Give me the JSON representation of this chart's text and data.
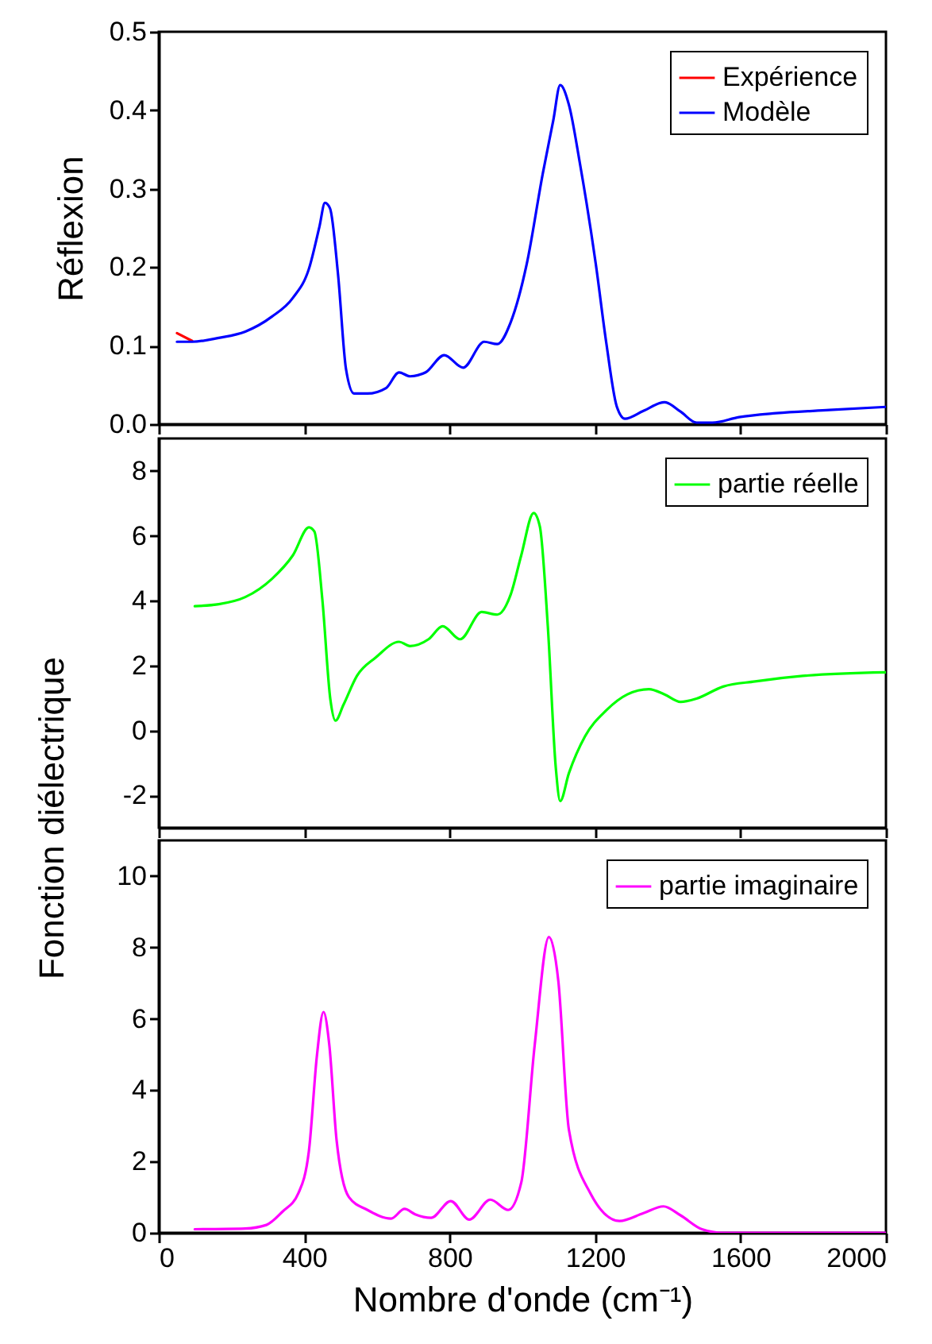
{
  "chart_data": [
    {
      "type": "line",
      "ylabel": "Réflexion",
      "xlim": [
        0,
        2000
      ],
      "xticks": [
        0,
        400,
        800,
        1200,
        1600,
        2000
      ],
      "ylim": [
        0,
        0.5
      ],
      "yticks": [
        {
          "value": 0,
          "label": "0.0"
        },
        0.1,
        0.2,
        0.3,
        0.4,
        0.5
      ],
      "tick_labels": "y",
      "grid": false,
      "legend": "top right",
      "marker": "none",
      "line_style": "solid",
      "x": [
        50,
        92,
        165,
        238,
        311,
        369,
        413,
        442,
        457,
        471,
        493,
        515,
        537,
        574,
        625,
        661,
        691,
        734,
        785,
        837,
        895,
        931,
        968,
        1012,
        1056,
        1085,
        1104,
        1128,
        1158,
        1202,
        1231,
        1260,
        1282,
        1333,
        1391,
        1435,
        1479,
        1523,
        1596,
        1698,
        1844,
        2000
      ],
      "series": [
        {
          "name": "Expérience",
          "color": "#ff0000",
          "values": [
            0.116,
            0.106,
            null,
            null,
            null,
            null,
            null,
            null,
            null,
            null,
            null,
            null,
            null,
            null,
            null,
            null,
            null,
            null,
            null,
            null,
            null,
            null,
            null,
            null,
            null,
            null,
            null,
            null,
            null,
            null,
            null,
            null,
            null,
            null,
            null,
            null,
            null,
            null,
            null,
            null,
            null,
            null
          ]
        },
        {
          "name": "Modèle",
          "color": "#0000ff",
          "values": [
            0.105,
            0.105,
            0.11,
            0.118,
            0.137,
            0.161,
            0.198,
            0.252,
            0.282,
            0.275,
            0.191,
            0.07,
            0.039,
            0.039,
            0.046,
            0.066,
            0.061,
            0.066,
            0.088,
            0.072,
            0.105,
            0.102,
            0.13,
            0.204,
            0.319,
            0.387,
            0.432,
            0.407,
            0.333,
            0.204,
            0.103,
            0.022,
            0.007,
            0.017,
            0.028,
            0.016,
            0.002,
            0.002,
            0.009,
            0.014,
            0.018,
            0.022
          ]
        }
      ]
    },
    {
      "type": "line",
      "ylabel": "Fonction diélectrique",
      "xlim": [
        0,
        2000
      ],
      "xticks": [
        0,
        400,
        800,
        1200,
        1600,
        2000
      ],
      "ylim": [
        -3,
        9
      ],
      "yticks": [
        -2,
        0,
        2,
        4,
        6,
        8
      ],
      "tick_labels": "y",
      "grid": false,
      "legend": "top right",
      "marker": "none",
      "line_style": "solid",
      "x": [
        99,
        165,
        238,
        311,
        369,
        413,
        428,
        450,
        472,
        486,
        508,
        545,
        596,
        661,
        691,
        742,
        781,
        829,
        888,
        931,
        968,
        997,
        1031,
        1048,
        1070,
        1092,
        1104,
        1128,
        1172,
        1231,
        1289,
        1348,
        1391,
        1435,
        1479,
        1552,
        1640,
        1771,
        2000
      ],
      "series": [
        {
          "name": "partie réelle",
          "color": "#00ff00",
          "values": [
            3.83,
            3.89,
            4.11,
            4.67,
            5.4,
            6.26,
            6.13,
            4.02,
            0.95,
            0.3,
            0.79,
            1.68,
            2.24,
            2.73,
            2.6,
            2.81,
            3.21,
            2.81,
            3.65,
            3.57,
            4.19,
            5.4,
            6.7,
            6.29,
            3.21,
            -1.16,
            -2.18,
            -1.32,
            -0.19,
            0.62,
            1.11,
            1.27,
            1.11,
            0.88,
            0.98,
            1.35,
            1.51,
            1.68,
            1.79
          ]
        }
      ]
    },
    {
      "type": "line",
      "xlabel": "Nombre d'onde (cm⁻¹)",
      "xlim": [
        0,
        2000
      ],
      "xticks": [
        0,
        400,
        800,
        1200,
        1600,
        2000
      ],
      "ylim": [
        0,
        11
      ],
      "yticks": [
        0,
        2,
        4,
        6,
        8,
        10
      ],
      "grid": false,
      "legend": "top right",
      "marker": "none",
      "line_style": "solid",
      "x": [
        99,
        238,
        296,
        340,
        384,
        413,
        435,
        453,
        469,
        489,
        523,
        574,
        639,
        676,
        705,
        749,
        803,
        854,
        912,
        961,
        997,
        1034,
        1073,
        1099,
        1128,
        1187,
        1267,
        1333,
        1388,
        1435,
        1494,
        1552,
        2000
      ],
      "series": [
        {
          "name": "partie imaginaire",
          "color": "#ff00ff",
          "values": [
            0.1,
            0.12,
            0.22,
            0.59,
            1.11,
            2.3,
            4.97,
            6.19,
            5.27,
            2.6,
            1.0,
            0.64,
            0.4,
            0.67,
            0.52,
            0.42,
            0.89,
            0.37,
            0.93,
            0.64,
            1.41,
            5.27,
            8.29,
            7.05,
            2.89,
            1.11,
            0.33,
            0.55,
            0.74,
            0.49,
            0.1,
            0,
            0
          ]
        }
      ]
    }
  ]
}
